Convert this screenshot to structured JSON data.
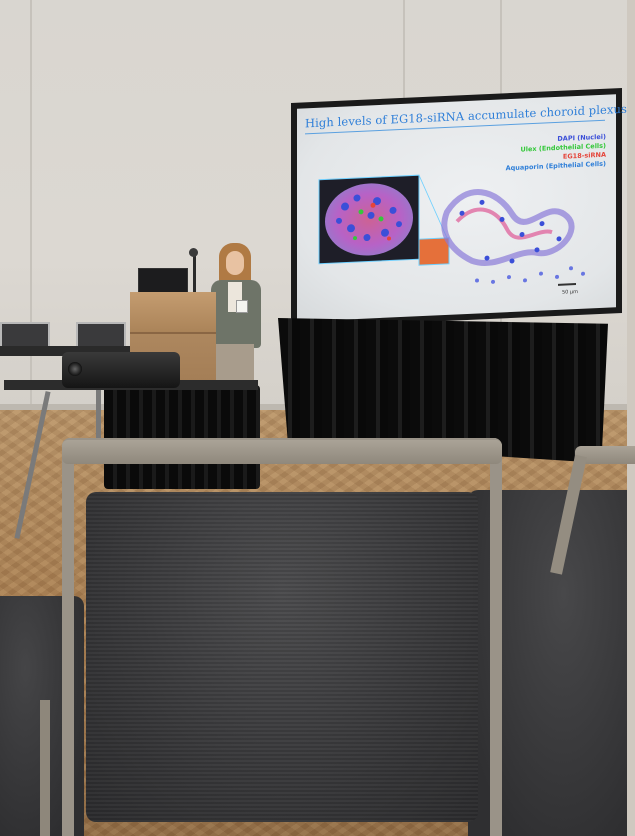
{
  "slide": {
    "title": "High levels of EG18-siRNA accumulate choroid plexus",
    "legend": [
      {
        "label": "DAPI (Nuclei)",
        "color": "#3b4fd8"
      },
      {
        "label": "Ulex (Endothelial Cells)",
        "color": "#34c83a"
      },
      {
        "label": "EG18-siRNA",
        "color": "#e5453a"
      },
      {
        "label": "Aquaporin (Epithelial Cells)",
        "color": "#2f7fd8"
      }
    ],
    "scale_label": "50 μm"
  },
  "colors": {
    "screen_frame": "#1a1a1a",
    "title_blue": "#2f7fd8",
    "carpet": "#a67c50",
    "chair_fabric": "#333335",
    "chair_frame": "#9a9388"
  }
}
